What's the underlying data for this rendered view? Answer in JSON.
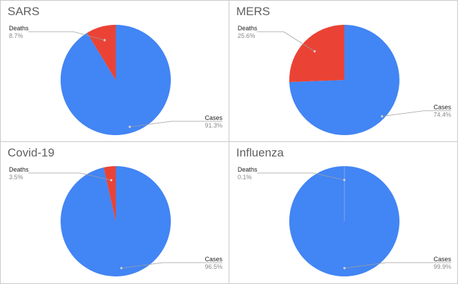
{
  "colors": {
    "cases": "#4285f4",
    "deaths": "#ea4335",
    "leader": "#9e9e9e"
  },
  "chart_data": [
    {
      "type": "pie",
      "title": "SARS",
      "slices": [
        {
          "label": "Cases",
          "value": 91.3,
          "display": "91.3%"
        },
        {
          "label": "Deaths",
          "value": 8.7,
          "display": "8.7%"
        }
      ]
    },
    {
      "type": "pie",
      "title": "MERS",
      "slices": [
        {
          "label": "Cases",
          "value": 74.4,
          "display": "74.4%"
        },
        {
          "label": "Deaths",
          "value": 25.6,
          "display": "25.6%"
        }
      ]
    },
    {
      "type": "pie",
      "title": "Covid-19",
      "slices": [
        {
          "label": "Cases",
          "value": 96.5,
          "display": "96.5%"
        },
        {
          "label": "Deaths",
          "value": 3.5,
          "display": "3.5%"
        }
      ]
    },
    {
      "type": "pie",
      "title": "Influenza",
      "slices": [
        {
          "label": "Cases",
          "value": 99.9,
          "display": "99.9%"
        },
        {
          "label": "Deaths",
          "value": 0.1,
          "display": "0.1%"
        }
      ]
    }
  ]
}
